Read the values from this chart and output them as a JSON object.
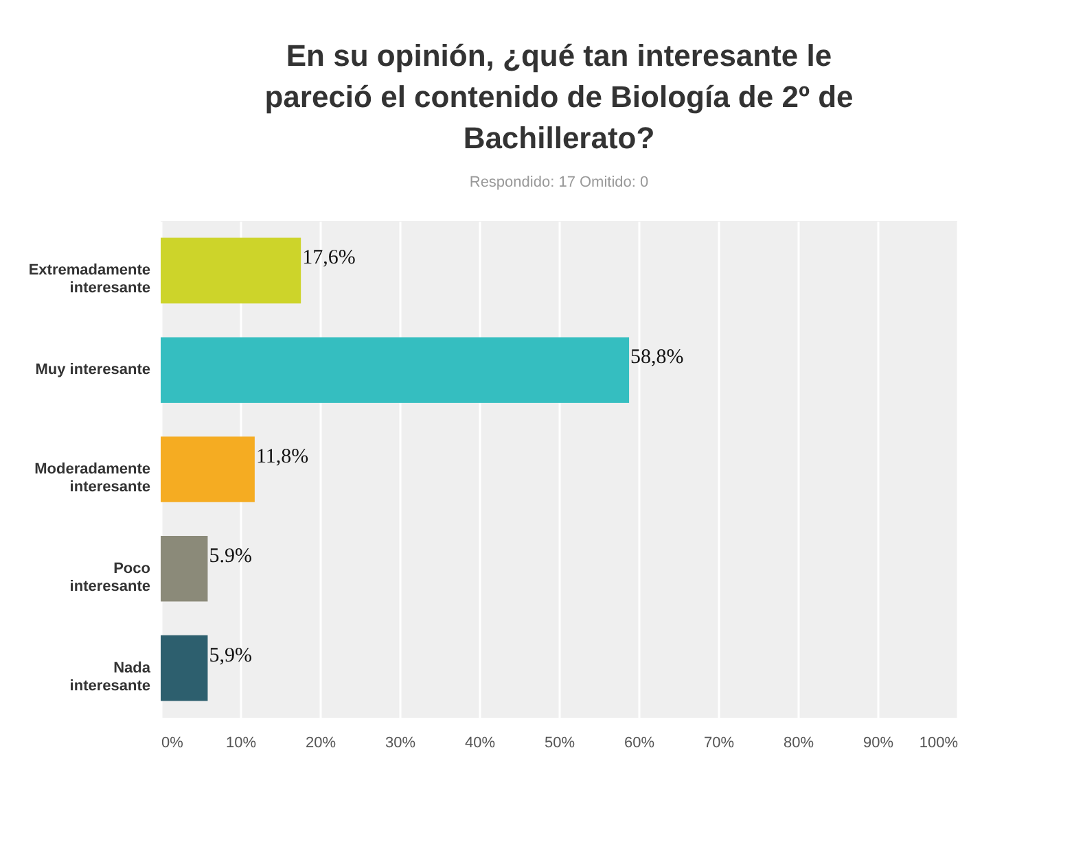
{
  "chart_data": {
    "type": "bar",
    "orientation": "horizontal",
    "title": "En su opinión, ¿qué tan interesante le pareció el contenido de Biología de 2º de Bachillerato?",
    "subtitle": "Respondido: 17    Omitido: 0",
    "categories": [
      "Extremadamente interesante",
      "Muy interesante",
      "Moderadamente interesante",
      "Poco interesante",
      "Nada interesante"
    ],
    "values": [
      17.6,
      58.8,
      11.8,
      5.9,
      5.9
    ],
    "colors": [
      "#cdd42a",
      "#35bec0",
      "#f5ac22",
      "#8b8a79",
      "#2d5f6e"
    ],
    "value_labels": [
      "17,6%",
      "58,8%",
      "11,8%",
      "5.9%",
      "5,9%"
    ],
    "xlim": [
      0,
      100
    ],
    "xticks": [
      {
        "value": 0,
        "label": "0%"
      },
      {
        "value": 10,
        "label": "10%"
      },
      {
        "value": 20,
        "label": "20%"
      },
      {
        "value": 30,
        "label": "30%"
      },
      {
        "value": 40,
        "label": "40%"
      },
      {
        "value": 50,
        "label": "50%"
      },
      {
        "value": 60,
        "label": "60%"
      },
      {
        "value": 70,
        "label": "70%"
      },
      {
        "value": 80,
        "label": "80%"
      },
      {
        "value": 90,
        "label": "90%"
      },
      {
        "value": 100,
        "label": "100%"
      }
    ],
    "grid": "x"
  }
}
